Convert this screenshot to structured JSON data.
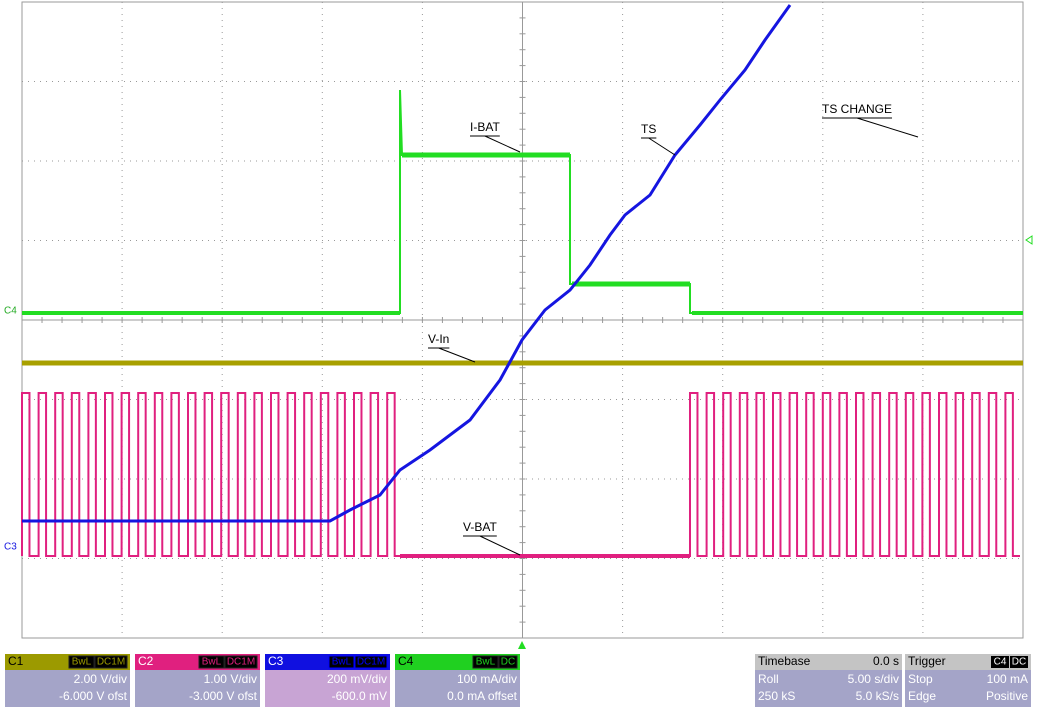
{
  "waveform_labels": [
    "I-BAT",
    "TS",
    "TS CHANGE",
    "V-In",
    "V-BAT"
  ],
  "channel_markers": [
    "C4",
    "C3"
  ],
  "channels": [
    {
      "name": "C1",
      "badges": [
        "BwL",
        "DC1M"
      ],
      "scale": "2.00 V/div",
      "offset": "-6.000 V ofst"
    },
    {
      "name": "C2",
      "badges": [
        "BwL",
        "DC1M"
      ],
      "scale": "1.00 V/div",
      "offset": "-3.000 V ofst"
    },
    {
      "name": "C3",
      "badges": [
        "BwL",
        "DC1M"
      ],
      "scale": "200 mV/div",
      "offset": "-600.0 mV"
    },
    {
      "name": "C4",
      "badges": [
        "BwL",
        "DC"
      ],
      "scale": "100 mA/div",
      "offset": "0.0 mA offset"
    }
  ],
  "timebase": {
    "title": "Timebase",
    "value": "0.0 s",
    "rows": [
      [
        "Roll",
        "5.00 s/div"
      ],
      [
        "250 kS",
        "5.0 kS/s"
      ]
    ]
  },
  "trigger": {
    "title": "Trigger",
    "badges": [
      "C4",
      "DC"
    ],
    "rows": [
      [
        "Stop",
        "100 mA"
      ],
      [
        "Edge",
        "Positive"
      ]
    ]
  }
}
